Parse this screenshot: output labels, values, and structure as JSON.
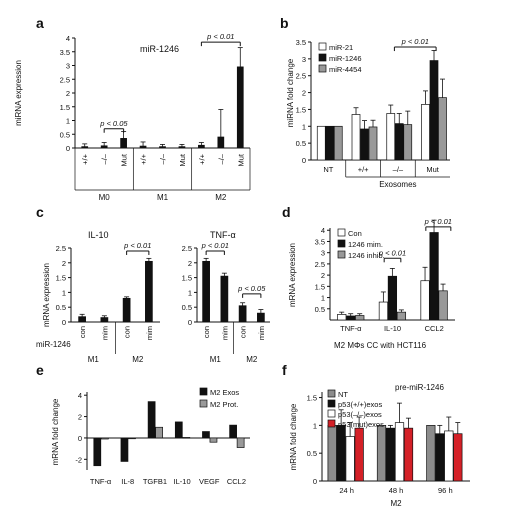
{
  "panels": {
    "a": {
      "letter": "a",
      "title": "miR-1246",
      "ylabel": "miRNA expression",
      "yticks": [
        "0",
        "0.5",
        "1",
        "1.5",
        "2",
        "2.5",
        "3",
        "3.5",
        "4"
      ],
      "pval1": "p < 0.05",
      "pval2": "p < 0.01",
      "cats": [
        "+/+",
        "–/–",
        "Mut",
        "+/+",
        "–/–",
        "Mut",
        "+/+",
        "–/–",
        "Mut"
      ],
      "groups": [
        "M0",
        "M1",
        "M2"
      ]
    },
    "b": {
      "letter": "b",
      "ylabel": "miRNA fold change",
      "yticks": [
        "0",
        "0.5",
        "1",
        "1.5",
        "2",
        "2.5",
        "3",
        "3.5"
      ],
      "pval": "p < 0.01",
      "legend": [
        "miR-21",
        "miR-1246",
        "miR-4454"
      ],
      "cats": [
        "NT",
        "+/+",
        "–/–",
        "Mut"
      ],
      "group": "Exosomes"
    },
    "c": {
      "letter": "c",
      "title1": "IL-10",
      "title2": "TNF-α",
      "ylabel": "mRNA expression",
      "yticks1": [
        "0",
        "0.5",
        "1",
        "1.5",
        "2",
        "2.5"
      ],
      "yticks2": [
        "0",
        "0.5",
        "1",
        "1.5",
        "2",
        "2.5"
      ],
      "pval1": "p < 0.01",
      "pval2": "p < 0.01",
      "pval3": "p < 0.05",
      "rowlabel": "miR-1246",
      "cats": [
        "con",
        "mim",
        "con",
        "mim"
      ],
      "groups": [
        "M1",
        "M2"
      ]
    },
    "d": {
      "letter": "d",
      "ylabel": "mRNA expression",
      "yticks": [
        "0.5",
        "1",
        "1.5",
        "2",
        "2.5",
        "3",
        "3.5",
        "4"
      ],
      "pval1": "p < 0.01",
      "pval2": "p < 0.01",
      "legend": [
        "Con",
        "1246 mim.",
        "1246 inhib."
      ],
      "cats": [
        "TNF-α",
        "IL-10",
        "CCL2"
      ],
      "footer": "M2 MΦs CC with HCT116"
    },
    "e": {
      "letter": "e",
      "ylabel": "mRNA fold change",
      "yticks": [
        "-2",
        "0",
        "2",
        "4"
      ],
      "legend": [
        "M2 Exos",
        "M2 Prot."
      ],
      "cats": [
        "TNF-α",
        "IL-8",
        "TGFB1",
        "IL-10",
        "VEGF",
        "CCL2"
      ]
    },
    "f": {
      "letter": "f",
      "title": "pre-miR-1246",
      "ylabel": "mRNA fold change",
      "yticks": [
        "0",
        "0.5",
        "1",
        "1.5"
      ],
      "legend": [
        "NT",
        "p53(+/+)exos",
        "p53(–/–)exos",
        "p53(mut)exos"
      ],
      "cats": [
        "24 h",
        "48 h",
        "96 h"
      ],
      "group": "M2"
    }
  },
  "colors": {
    "black": "#111111",
    "gray": "#999999",
    "white": "#ffffff",
    "red": "#d42027",
    "darkgray": "#8c8c8c"
  },
  "chart_data": [
    {
      "panel": "a",
      "type": "bar",
      "categories": [
        "M0 +/+",
        "M0 –/–",
        "M0 Mut",
        "M1 +/+",
        "M1 –/–",
        "M1 Mut",
        "M2 +/+",
        "M2 –/–",
        "M2 Mut"
      ],
      "values": [
        0.05,
        0.08,
        0.35,
        0.07,
        0.05,
        0.05,
        0.1,
        0.4,
        2.95
      ],
      "errors": [
        0.1,
        0.12,
        0.25,
        0.15,
        0.08,
        0.08,
        0.1,
        1.0,
        0.7
      ],
      "ylim": [
        0,
        4
      ],
      "ylabel": "miRNA expression",
      "title": "miR-1246"
    },
    {
      "panel": "b",
      "type": "bar",
      "categories": [
        "NT",
        "+/+",
        "–/–",
        "Mut"
      ],
      "series": [
        {
          "name": "miR-21",
          "values": [
            1.0,
            1.35,
            1.38,
            1.65
          ],
          "errors": [
            0,
            0.2,
            0.25,
            0.4
          ]
        },
        {
          "name": "miR-1246",
          "values": [
            1.0,
            0.92,
            1.08,
            2.95
          ],
          "errors": [
            0,
            0.25,
            0.3,
            0.3
          ]
        },
        {
          "name": "miR-4454",
          "values": [
            1.0,
            0.98,
            1.05,
            1.85
          ],
          "errors": [
            0,
            0.2,
            0.4,
            0.55
          ]
        }
      ],
      "ylim": [
        0,
        3.5
      ],
      "ylabel": "miRNA fold change"
    },
    {
      "panel": "c",
      "type": "bar",
      "title": "IL-10",
      "categories": [
        "M1 con",
        "M1 mim",
        "M2 con",
        "M2 mim"
      ],
      "values": [
        0.18,
        0.15,
        0.8,
        2.05
      ],
      "errors": [
        0.08,
        0.06,
        0.05,
        0.1
      ],
      "ylim": [
        0,
        2.5
      ],
      "ylabel": "mRNA expression"
    },
    {
      "panel": "c",
      "type": "bar",
      "title": "TNF-α",
      "categories": [
        "M1 con",
        "M1 mim",
        "M2 con",
        "M2 mim"
      ],
      "values": [
        2.05,
        1.55,
        0.55,
        0.3
      ],
      "errors": [
        0.1,
        0.1,
        0.1,
        0.12
      ],
      "ylim": [
        0,
        2.5
      ]
    },
    {
      "panel": "d",
      "type": "bar",
      "categories": [
        "TNF-α",
        "IL-10",
        "CCL2"
      ],
      "series": [
        {
          "name": "Con",
          "values": [
            0.25,
            0.8,
            1.75
          ],
          "errors": [
            0.1,
            0.45,
            0.6
          ]
        },
        {
          "name": "1246 mim.",
          "values": [
            0.18,
            1.95,
            3.9
          ],
          "errors": [
            0.1,
            0.35,
            0.55
          ]
        },
        {
          "name": "1246 inhib.",
          "values": [
            0.2,
            0.35,
            1.3
          ],
          "errors": [
            0.08,
            0.1,
            0.3
          ]
        }
      ],
      "ylim": [
        0,
        4
      ],
      "ylabel": "mRNA expression"
    },
    {
      "panel": "e",
      "type": "bar",
      "categories": [
        "TNF-α",
        "IL-8",
        "TGFB1",
        "IL-10",
        "VEGF",
        "CCL2"
      ],
      "series": [
        {
          "name": "M2 Exos",
          "values": [
            -2.6,
            -2.2,
            3.4,
            1.5,
            0.6,
            1.2
          ]
        },
        {
          "name": "M2 Prot.",
          "values": [
            -0.1,
            0.0,
            1.0,
            0.05,
            -0.4,
            -0.9
          ]
        }
      ],
      "ylim": [
        -3,
        4
      ],
      "ylabel": "mRNA fold change"
    },
    {
      "panel": "f",
      "type": "bar",
      "title": "pre-miR-1246",
      "categories": [
        "24 h",
        "48 h",
        "96 h"
      ],
      "series": [
        {
          "name": "NT",
          "values": [
            1.0,
            1.0,
            1.0
          ],
          "errors": [
            0,
            0,
            0
          ]
        },
        {
          "name": "p53(+/+)exos",
          "values": [
            1.0,
            0.95,
            0.85
          ],
          "errors": [
            0.28,
            0.05,
            0.15
          ]
        },
        {
          "name": "p53(–/–)exos",
          "values": [
            0.8,
            1.05,
            0.9
          ],
          "errors": [
            0.25,
            0.35,
            0.25
          ]
        },
        {
          "name": "p53(mut)exos",
          "values": [
            0.95,
            0.95,
            0.85
          ],
          "errors": [
            0.2,
            0.18,
            0.2
          ]
        }
      ],
      "ylim": [
        0,
        1.6
      ],
      "ylabel": "mRNA fold change"
    }
  ]
}
